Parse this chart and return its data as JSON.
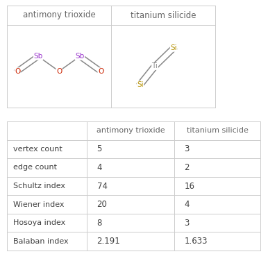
{
  "col_headers": [
    "",
    "antimony trioxide",
    "titanium silicide"
  ],
  "row_labels": [
    "vertex count",
    "edge count",
    "Schultz index",
    "Wiener index",
    "Hosoya index",
    "Balaban index"
  ],
  "antimony_values": [
    "5",
    "4",
    "74",
    "20",
    "8",
    "2.191"
  ],
  "titanium_values": [
    "3",
    "2",
    "16",
    "4",
    "3",
    "1.633"
  ],
  "border_color": "#cccccc",
  "text_color": "#404040",
  "header_text_color": "#666666",
  "background_color": "#ffffff",
  "sb_color": "#9933cc",
  "o_color": "#cc2200",
  "si_color": "#b8960c",
  "ti_color": "#909090"
}
